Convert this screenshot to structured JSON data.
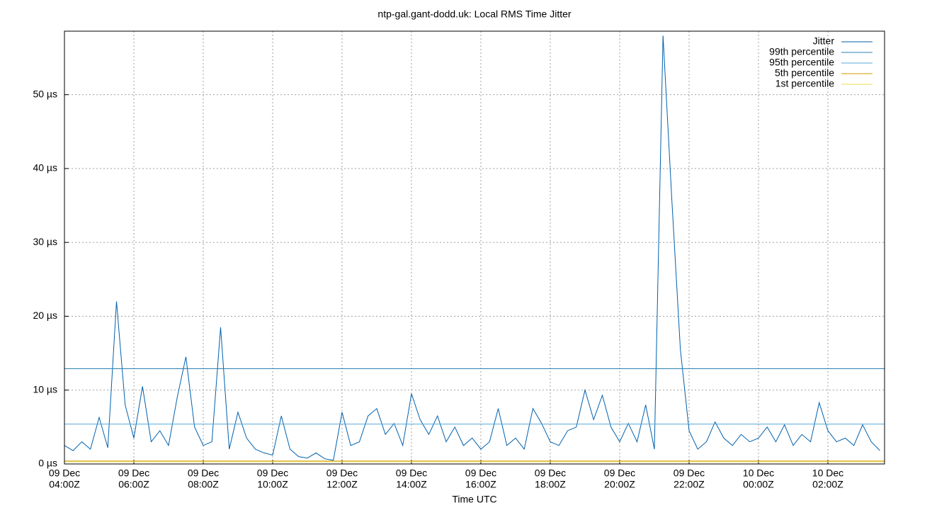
{
  "chart_data": {
    "type": "line",
    "title": "ntp-gal.gant-dodd.uk: Local RMS Time Jitter",
    "xlabel": "Time UTC",
    "xlim": [
      "09 Dec 04:00Z",
      "10 Dec 03:38Z"
    ],
    "xticks": [
      {
        "value": "09 Dec 04:00Z",
        "label": [
          "09 Dec",
          "04:00Z"
        ]
      },
      {
        "value": "09 Dec 06:00Z",
        "label": [
          "09 Dec",
          "06:00Z"
        ]
      },
      {
        "value": "09 Dec 08:00Z",
        "label": [
          "09 Dec",
          "08:00Z"
        ]
      },
      {
        "value": "09 Dec 10:00Z",
        "label": [
          "09 Dec",
          "10:00Z"
        ]
      },
      {
        "value": "09 Dec 12:00Z",
        "label": [
          "09 Dec",
          "12:00Z"
        ]
      },
      {
        "value": "09 Dec 14:00Z",
        "label": [
          "09 Dec",
          "14:00Z"
        ]
      },
      {
        "value": "09 Dec 16:00Z",
        "label": [
          "09 Dec",
          "16:00Z"
        ]
      },
      {
        "value": "09 Dec 18:00Z",
        "label": [
          "09 Dec",
          "18:00Z"
        ]
      },
      {
        "value": "09 Dec 20:00Z",
        "label": [
          "09 Dec",
          "20:00Z"
        ]
      },
      {
        "value": "09 Dec 22:00Z",
        "label": [
          "09 Dec",
          "22:00Z"
        ]
      },
      {
        "value": "10 Dec 00:00Z",
        "label": [
          "10 Dec",
          "00:00Z"
        ]
      },
      {
        "value": "10 Dec 02:00Z",
        "label": [
          "10 Dec",
          "02:00Z"
        ]
      }
    ],
    "ylim": [
      0,
      58.6
    ],
    "yticks": [
      {
        "value": 0,
        "label": "0 µs"
      },
      {
        "value": 10,
        "label": "10 µs"
      },
      {
        "value": 20,
        "label": "20 µs"
      },
      {
        "value": 30,
        "label": "30 µs"
      },
      {
        "value": 40,
        "label": "40 µs"
      },
      {
        "value": 50,
        "label": "50 µs"
      }
    ],
    "grid": true,
    "legend": "top-right",
    "x": [
      "09 Dec 04:00Z",
      "09 Dec 04:15Z",
      "09 Dec 04:30Z",
      "09 Dec 04:45Z",
      "09 Dec 05:00Z",
      "09 Dec 05:15Z",
      "09 Dec 05:30Z",
      "09 Dec 05:45Z",
      "09 Dec 06:00Z",
      "09 Dec 06:15Z",
      "09 Dec 06:30Z",
      "09 Dec 06:45Z",
      "09 Dec 07:00Z",
      "09 Dec 07:15Z",
      "09 Dec 07:30Z",
      "09 Dec 07:45Z",
      "09 Dec 08:00Z",
      "09 Dec 08:15Z",
      "09 Dec 08:30Z",
      "09 Dec 08:45Z",
      "09 Dec 09:00Z",
      "09 Dec 09:15Z",
      "09 Dec 09:30Z",
      "09 Dec 09:45Z",
      "09 Dec 10:00Z",
      "09 Dec 10:15Z",
      "09 Dec 10:30Z",
      "09 Dec 10:45Z",
      "09 Dec 11:00Z",
      "09 Dec 11:15Z",
      "09 Dec 11:30Z",
      "09 Dec 11:45Z",
      "09 Dec 12:00Z",
      "09 Dec 12:15Z",
      "09 Dec 12:30Z",
      "09 Dec 12:45Z",
      "09 Dec 13:00Z",
      "09 Dec 13:15Z",
      "09 Dec 13:30Z",
      "09 Dec 13:45Z",
      "09 Dec 14:00Z",
      "09 Dec 14:15Z",
      "09 Dec 14:30Z",
      "09 Dec 14:45Z",
      "09 Dec 15:00Z",
      "09 Dec 15:15Z",
      "09 Dec 15:30Z",
      "09 Dec 15:45Z",
      "09 Dec 16:00Z",
      "09 Dec 16:15Z",
      "09 Dec 16:30Z",
      "09 Dec 16:45Z",
      "09 Dec 17:00Z",
      "09 Dec 17:15Z",
      "09 Dec 17:30Z",
      "09 Dec 17:45Z",
      "09 Dec 18:00Z",
      "09 Dec 18:15Z",
      "09 Dec 18:30Z",
      "09 Dec 18:45Z",
      "09 Dec 19:00Z",
      "09 Dec 19:15Z",
      "09 Dec 19:30Z",
      "09 Dec 19:45Z",
      "09 Dec 20:00Z",
      "09 Dec 20:15Z",
      "09 Dec 20:30Z",
      "09 Dec 20:45Z",
      "09 Dec 21:00Z",
      "09 Dec 21:15Z",
      "09 Dec 21:30Z",
      "09 Dec 21:45Z",
      "09 Dec 22:00Z",
      "09 Dec 22:15Z",
      "09 Dec 22:30Z",
      "09 Dec 22:45Z",
      "09 Dec 23:00Z",
      "09 Dec 23:15Z",
      "09 Dec 23:30Z",
      "09 Dec 23:45Z",
      "10 Dec 00:00Z",
      "10 Dec 00:15Z",
      "10 Dec 00:30Z",
      "10 Dec 00:45Z",
      "10 Dec 01:00Z",
      "10 Dec 01:15Z",
      "10 Dec 01:30Z",
      "10 Dec 01:45Z",
      "10 Dec 02:00Z",
      "10 Dec 02:15Z",
      "10 Dec 02:30Z",
      "10 Dec 02:45Z",
      "10 Dec 03:00Z",
      "10 Dec 03:15Z",
      "10 Dec 03:30Z"
    ],
    "series": [
      {
        "name": "Jitter",
        "color": "#0060ad",
        "values": [
          2.5,
          1.8,
          3.0,
          2.0,
          6.3,
          2.2,
          22.0,
          8.0,
          3.5,
          10.5,
          3.0,
          4.5,
          2.5,
          9.0,
          14.5,
          5.0,
          2.5,
          3.0,
          18.5,
          2.0,
          7.0,
          3.5,
          2.0,
          1.5,
          1.2,
          6.5,
          2.0,
          1.0,
          0.8,
          1.5,
          0.7,
          0.5,
          7.0,
          2.5,
          3.0,
          6.5,
          7.5,
          4.0,
          5.5,
          2.5,
          9.5,
          6.0,
          4.0,
          6.5,
          3.0,
          5.0,
          2.5,
          3.5,
          2.0,
          3.0,
          7.5,
          2.5,
          3.5,
          2.0,
          7.5,
          5.5,
          3.0,
          2.5,
          4.5,
          5.0,
          10.0,
          6.0,
          9.3,
          5.0,
          3.0,
          5.5,
          3.0,
          8.0,
          2.0,
          58.0,
          36.0,
          15.5,
          4.5,
          2.0,
          3.0,
          5.7,
          3.5,
          2.5,
          4.0,
          3.0,
          3.5,
          5.0,
          3.0,
          5.3,
          2.5,
          4.0,
          3.0,
          8.3,
          4.5,
          3.0,
          3.5,
          2.5,
          5.3,
          3.0,
          1.8
        ]
      },
      {
        "name": "99th percentile",
        "color": "#2c80b4",
        "value": 12.9
      },
      {
        "name": "95th percentile",
        "color": "#56a8d8",
        "value": 5.4
      },
      {
        "name": "5th percentile",
        "color": "#d49a00",
        "value": 0.4
      },
      {
        "name": "1st percentile",
        "color": "#e8dc50",
        "value": 0.3
      }
    ]
  }
}
